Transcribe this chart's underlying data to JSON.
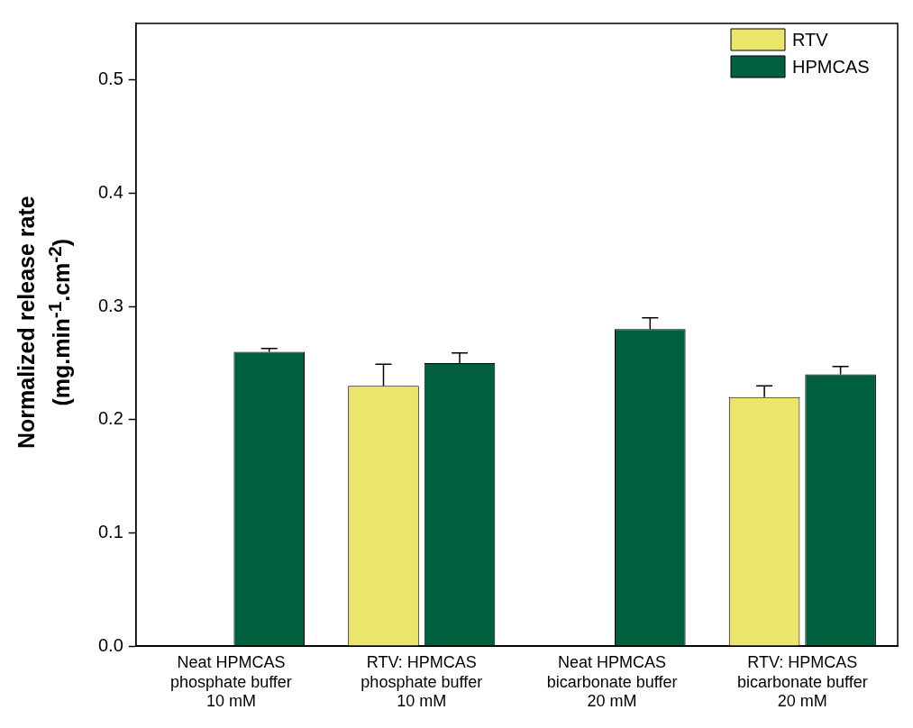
{
  "chart_data": {
    "type": "bar",
    "ylabel": "Normalized release rate\n(mg.min$^{-1}$.cm$^{-2}$)",
    "categories": [
      "Neat HPMCAS\nphosphate buffer\n10 mM",
      "RTV: HPMCAS\nphosphate buffer\n10 mM",
      "Neat HPMCAS\nbicarbonate buffer\n20 mM",
      "RTV: HPMCAS\nbicarbonate buffer\n20 mM"
    ],
    "series": [
      {
        "name": "RTV",
        "color": "#ece56b",
        "values": [
          null,
          0.23,
          null,
          0.22
        ],
        "errors": [
          null,
          [
            0.23,
            0.249
          ],
          null,
          [
            0.22,
            0.23
          ]
        ]
      },
      {
        "name": "HPMCAS",
        "color": "#005f3c",
        "values": [
          0.26,
          0.25,
          0.28,
          0.24
        ],
        "errors": [
          [
            0.26,
            0.263
          ],
          [
            0.25,
            0.259
          ],
          [
            0.28,
            0.29
          ],
          [
            0.24,
            0.247
          ]
        ]
      }
    ],
    "ylim": [
      0,
      0.55
    ],
    "yticks": [
      {
        "value": 0,
        "label": "0.0"
      },
      {
        "value": 0.1,
        "label": "0.1"
      },
      {
        "value": 0.2,
        "label": "0.2"
      },
      {
        "value": 0.3,
        "label": "0.3"
      },
      {
        "value": 0.4,
        "label": "0.4"
      },
      {
        "value": 0.5,
        "label": "0.5"
      }
    ],
    "grid": false,
    "legend": "top right"
  }
}
